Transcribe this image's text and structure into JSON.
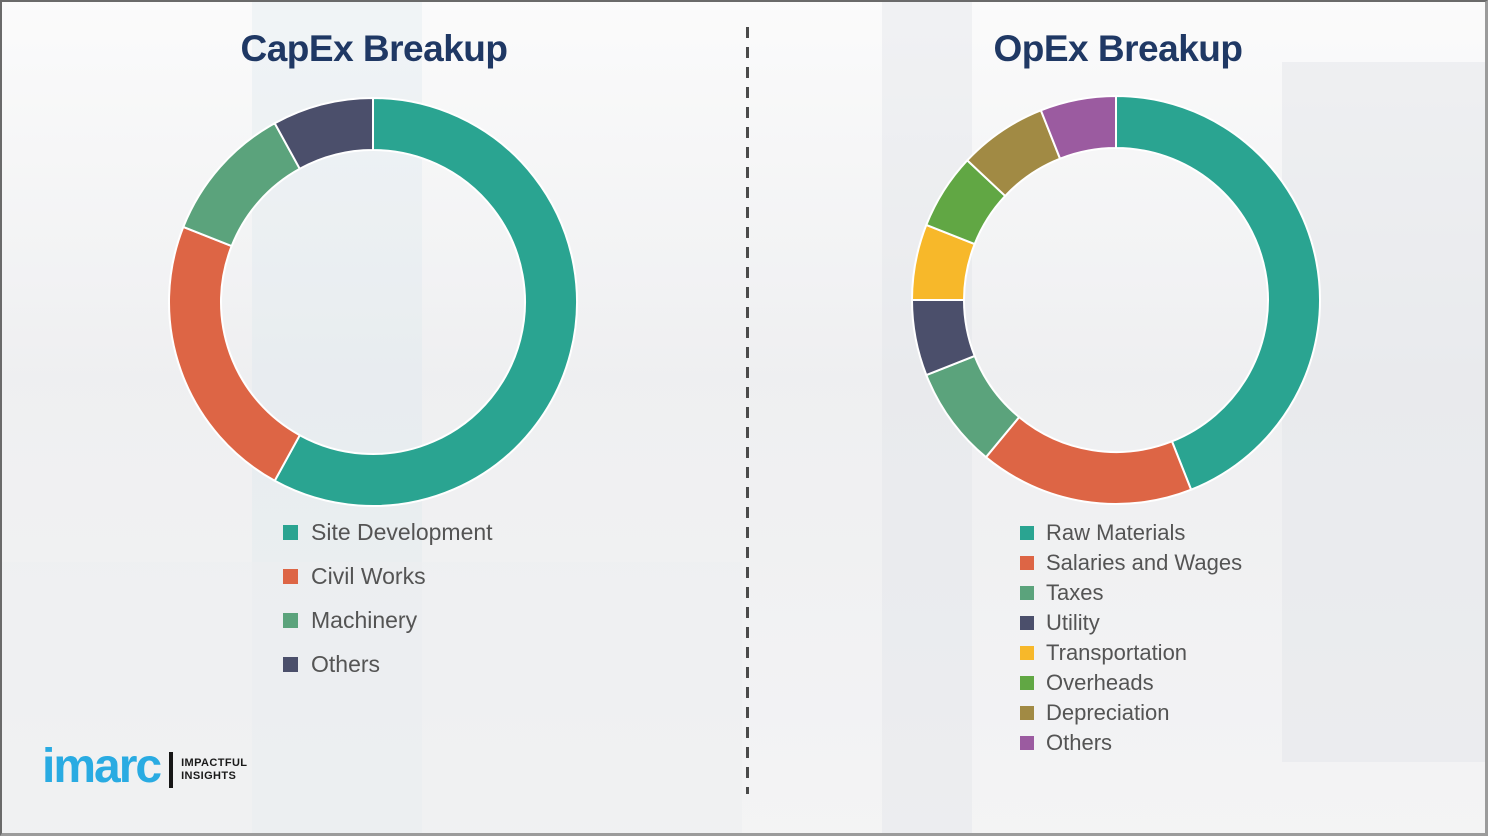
{
  "style": {
    "title_color": "#1f3864",
    "legend_text_color": "#545454",
    "divider_color": "#4a4a4a",
    "background_color": "#f3f3f4",
    "slice_gap_color": "#ffffff"
  },
  "logo": {
    "brand": "imarc",
    "brand_color": "#29ABE2",
    "tagline_line1": "IMPACTFUL",
    "tagline_line2": "INSIGHTS"
  },
  "chart_data": [
    {
      "type": "pie",
      "variant": "donut",
      "title": "CapEx Breakup",
      "units": "percent",
      "start_angle_deg": 0,
      "direction": "clockwise",
      "legend_position": "below-left",
      "items": [
        {
          "label": "Site Development",
          "value": 58,
          "color": "#2AA491"
        },
        {
          "label": "Civil Works",
          "value": 23,
          "color": "#DD6545"
        },
        {
          "label": "Machinery",
          "value": 11,
          "color": "#5BA37C"
        },
        {
          "label": "Others",
          "value": 8,
          "color": "#4B4F6B"
        }
      ]
    },
    {
      "type": "pie",
      "variant": "donut",
      "title": "OpEx Breakup",
      "units": "percent",
      "start_angle_deg": 0,
      "direction": "clockwise",
      "legend_position": "below-left",
      "items": [
        {
          "label": "Raw Materials",
          "value": 44,
          "color": "#2AA491"
        },
        {
          "label": "Salaries and Wages",
          "value": 17,
          "color": "#DD6545"
        },
        {
          "label": "Taxes",
          "value": 8,
          "color": "#5BA37C"
        },
        {
          "label": "Utility",
          "value": 6,
          "color": "#4B4F6B"
        },
        {
          "label": "Transportation",
          "value": 6,
          "color": "#F7B82A"
        },
        {
          "label": "Overheads",
          "value": 6,
          "color": "#61A744"
        },
        {
          "label": "Depreciation",
          "value": 7,
          "color": "#A18A44"
        },
        {
          "label": "Others",
          "value": 6,
          "color": "#9B5BA0"
        }
      ]
    }
  ]
}
